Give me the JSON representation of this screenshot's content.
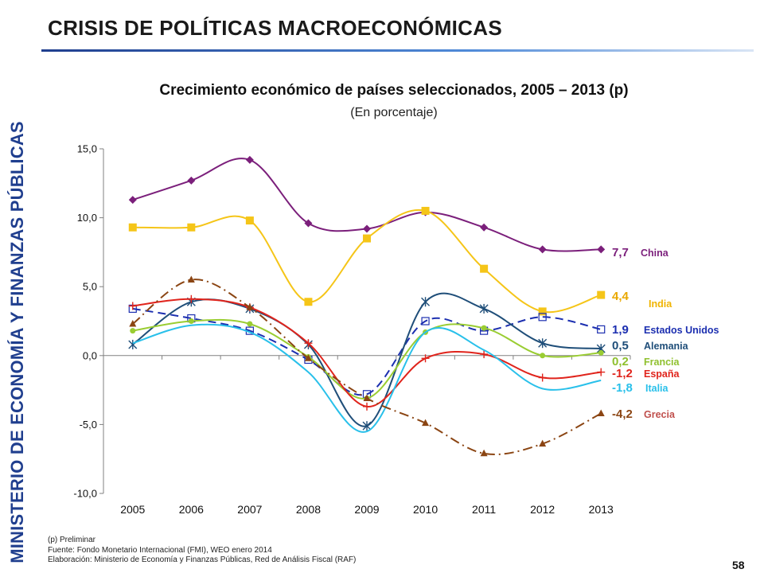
{
  "sidebar": {
    "label": "MINISTERIO DE ECONOMÍA Y FINANZAS PÚBLICAS"
  },
  "slide": {
    "title": "CRISIS DE POLÍTICAS MACROECONÓMICAS",
    "page_number": "58"
  },
  "footer": {
    "note": "(p) Preliminar",
    "source": "Fuente: Fondo Monetario Internacional (FMI), WEO enero 2014",
    "prepared_by": "Elaboración: Ministerio de Economía y Finanzas Públicas, Red de Análisis Fiscal (RAF)"
  },
  "chart_data": {
    "type": "line",
    "title": "Crecimiento económico de países seleccionados, 2005 – 2013 (p)",
    "subtitle": "(En porcentaje)",
    "xlabel": "",
    "ylabel": "",
    "categories": [
      "2005",
      "2006",
      "2007",
      "2008",
      "2009",
      "2010",
      "2011",
      "2012",
      "2013"
    ],
    "ylim": [
      -10,
      15
    ],
    "yticks": [
      15,
      10,
      5,
      0,
      -5,
      -10
    ],
    "ytick_labels": [
      "15,0",
      "10,0",
      "5,0",
      "0,0",
      "-5,0",
      "-10,0"
    ],
    "grid": false,
    "series": [
      {
        "name": "China",
        "color": "#7b1f7b",
        "marker": "diamond",
        "dash": "solid",
        "values": [
          11.3,
          12.7,
          14.2,
          9.6,
          9.2,
          10.4,
          9.3,
          7.7,
          7.7
        ],
        "end_label": "7,7",
        "end_label_color": "#7b1f7b",
        "name_color": "#7b1f7b"
      },
      {
        "name": "India",
        "color": "#f5c518",
        "marker": "square",
        "dash": "solid",
        "values": [
          9.3,
          9.3,
          9.8,
          3.9,
          8.5,
          10.5,
          6.3,
          3.2,
          4.4
        ],
        "end_label": "4,4",
        "end_label_color": "#e9a800",
        "name_color": "#f0b400"
      },
      {
        "name": "Estados Unidos",
        "color": "#1c2fb0",
        "marker": "open-square",
        "dash": "dashed",
        "values": [
          3.4,
          2.7,
          1.8,
          -0.3,
          -2.8,
          2.5,
          1.8,
          2.8,
          1.9
        ],
        "end_label": "1,9",
        "end_label_color": "#1c2fb0",
        "name_color": "#1c2fb0"
      },
      {
        "name": "Alemania",
        "color": "#1f4e79",
        "marker": "star",
        "dash": "solid",
        "values": [
          0.8,
          3.9,
          3.4,
          0.8,
          -5.1,
          3.9,
          3.4,
          0.9,
          0.5
        ],
        "end_label": "0,5",
        "end_label_color": "#1f4e79",
        "name_color": "#1f4e79"
      },
      {
        "name": "Francia",
        "color": "#9acd32",
        "marker": "circle",
        "dash": "solid",
        "values": [
          1.8,
          2.5,
          2.3,
          -0.1,
          -3.1,
          1.7,
          2.0,
          0.0,
          0.2
        ],
        "end_label": "0,2",
        "end_label_color": "#8fc02e",
        "name_color": "#8fc02e"
      },
      {
        "name": "España",
        "color": "#e0241c",
        "marker": "plus",
        "dash": "solid",
        "values": [
          3.6,
          4.1,
          3.5,
          0.9,
          -3.7,
          -0.2,
          0.1,
          -1.6,
          -1.2
        ],
        "end_label": "-1,2",
        "end_label_color": "#e0241c",
        "name_color": "#e0241c"
      },
      {
        "name": "Italia",
        "color": "#29c0ea",
        "marker": "none",
        "dash": "solid",
        "values": [
          0.9,
          2.2,
          1.7,
          -1.2,
          -5.5,
          1.7,
          0.4,
          -2.4,
          -1.8
        ],
        "end_label": "-1,8",
        "end_label_color": "#29c0ea",
        "name_color": "#29c0ea"
      },
      {
        "name": "Grecia",
        "color": "#8b4513",
        "marker": "triangle",
        "dash": "dashdot",
        "values": [
          2.3,
          5.5,
          3.5,
          -0.2,
          -3.1,
          -4.9,
          -7.1,
          -6.4,
          -4.2
        ],
        "end_label": "-4,2",
        "end_label_color": "#8b4513",
        "name_color": "#c0504d"
      }
    ]
  }
}
